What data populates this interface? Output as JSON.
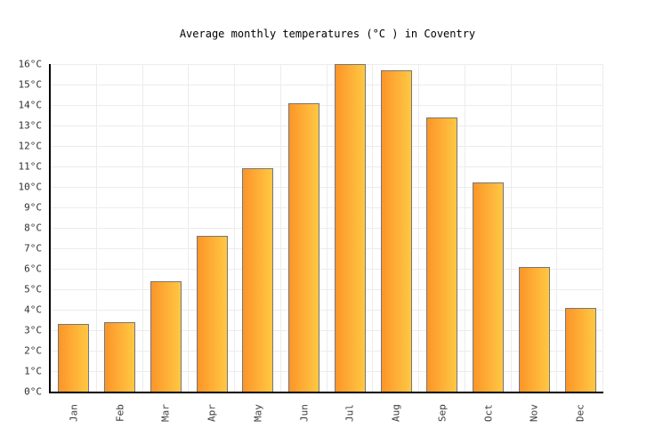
{
  "title": "Average monthly temperatures (°C ) in Coventry",
  "chart_data": {
    "type": "bar",
    "title": "Average monthly temperatures (°C ) in Coventry",
    "categories": [
      "Jan",
      "Feb",
      "Mar",
      "Apr",
      "May",
      "Jun",
      "Jul",
      "Aug",
      "Sep",
      "Oct",
      "Nov",
      "Dec"
    ],
    "values": [
      3.3,
      3.4,
      5.4,
      7.6,
      10.9,
      14.1,
      16.0,
      15.7,
      13.4,
      10.2,
      6.1,
      4.1
    ],
    "unit": "°C",
    "xlabel": "",
    "ylabel": "",
    "ylim": [
      0,
      16
    ],
    "y_tick_step": 1,
    "y_ticks": [
      "0°C",
      "1°C",
      "2°C",
      "3°C",
      "4°C",
      "5°C",
      "6°C",
      "7°C",
      "8°C",
      "9°C",
      "10°C",
      "11°C",
      "12°C",
      "13°C",
      "14°C",
      "15°C",
      "16°C"
    ],
    "grid": true,
    "legend": false,
    "colors": {
      "bar_gradient_left": "#FC9529",
      "bar_gradient_right": "#FFC843",
      "bar_border": "#75757E",
      "gridline": "#ECECEC",
      "axis": "#000000",
      "y_tick_label": "#303030",
      "x_tick_label": "#3C3C3C",
      "title": "#000000",
      "background": "#FFFFFF"
    }
  }
}
